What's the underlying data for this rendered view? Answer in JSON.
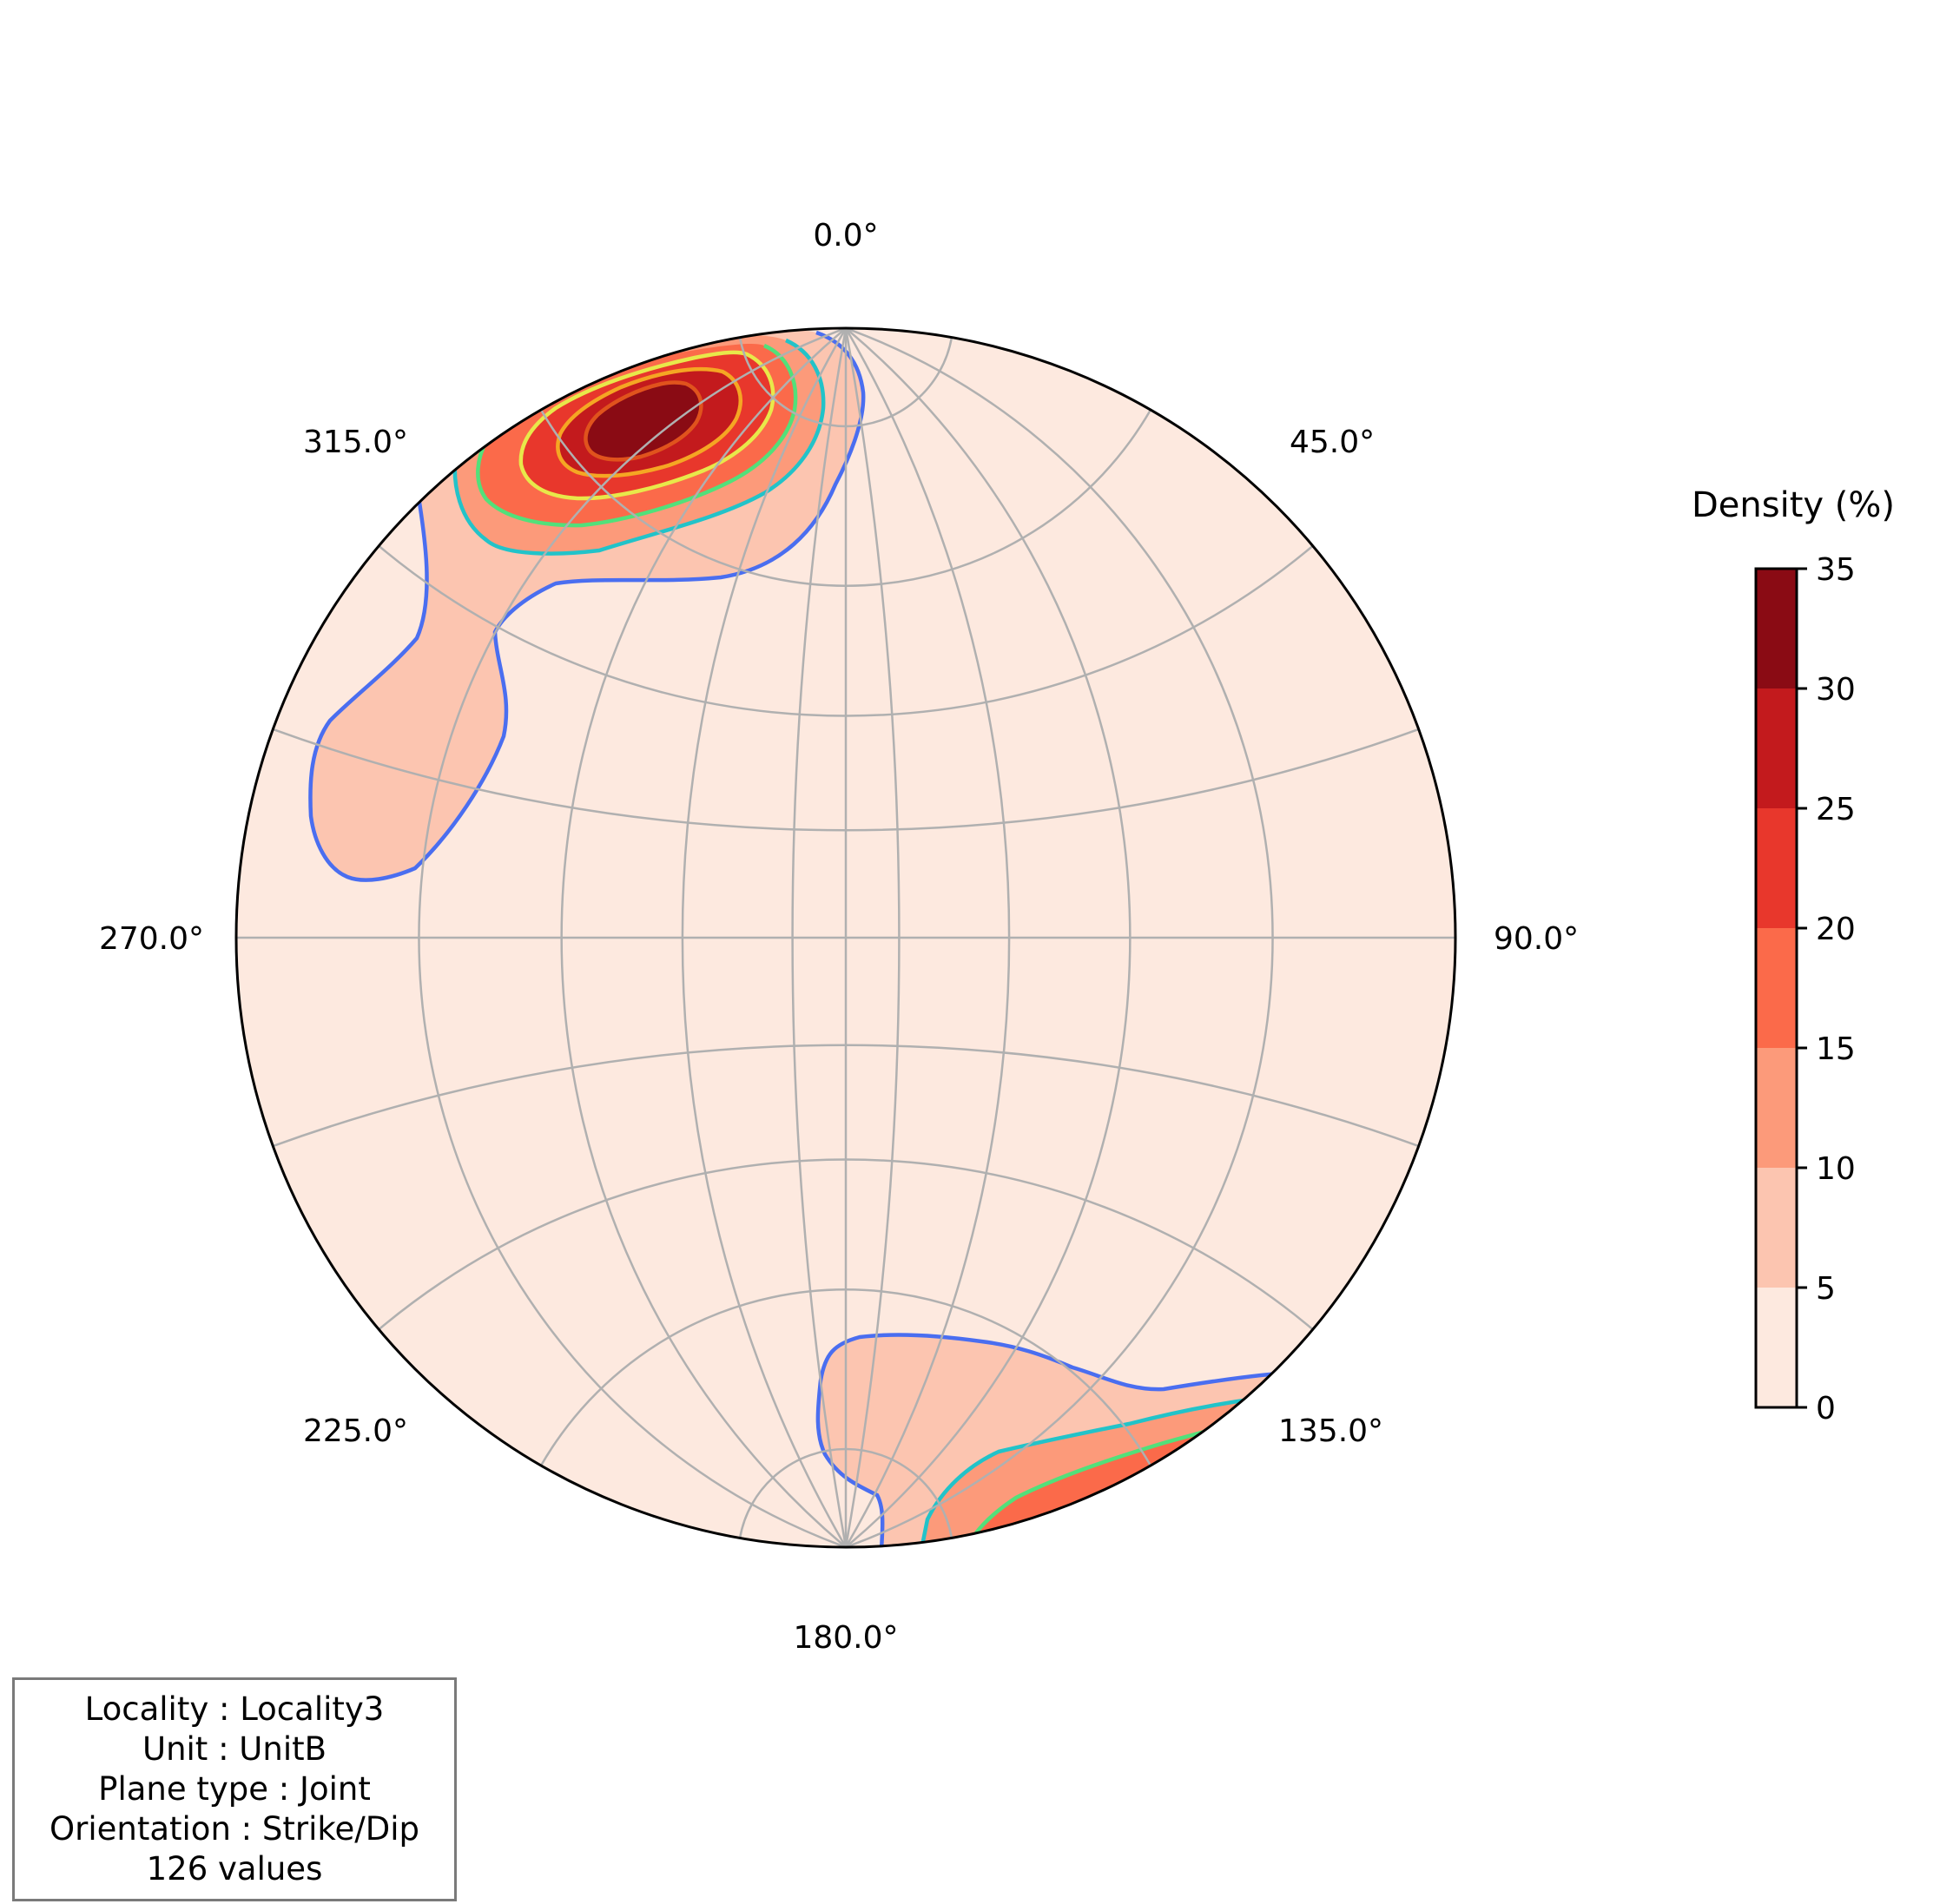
{
  "chart_data": {
    "type": "stereonet-density",
    "projection": "equal-angle",
    "azimuth_labels": [
      "0.0°",
      "45.0°",
      "90.0°",
      "135.0°",
      "180.0°",
      "225.0°",
      "270.0°",
      "315.0°"
    ],
    "grid": true,
    "colorbar": {
      "title": "Density (%)",
      "ticks": [
        "0",
        "5",
        "10",
        "15",
        "20",
        "25",
        "30",
        "35"
      ],
      "range": [
        0,
        35
      ],
      "levels": [
        0,
        5,
        10,
        15,
        20,
        25,
        30,
        35
      ],
      "level_colors": [
        "#fde9df",
        "#fcc5b0",
        "#fc9a7a",
        "#fb6a4a",
        "#e8372c",
        "#c31a1d",
        "#8a0b14"
      ],
      "placement": "right"
    },
    "clusters": [
      {
        "name": "north-west maximum",
        "trend_deg": 330,
        "peak_density_pct": 33
      },
      {
        "name": "south-east maximum",
        "trend_deg": 150,
        "peak_density_pct": 24
      }
    ],
    "contour_line_colors": [
      "#4a6ef0",
      "#22c3c9",
      "#52e07a",
      "#e8e84a",
      "#f5a623",
      "#e0531d"
    ]
  },
  "info": {
    "lines": [
      "Locality : Locality3",
      "Unit : UnitB",
      "Plane type : Joint",
      "Orientation : Strike/Dip",
      "126 values"
    ]
  }
}
